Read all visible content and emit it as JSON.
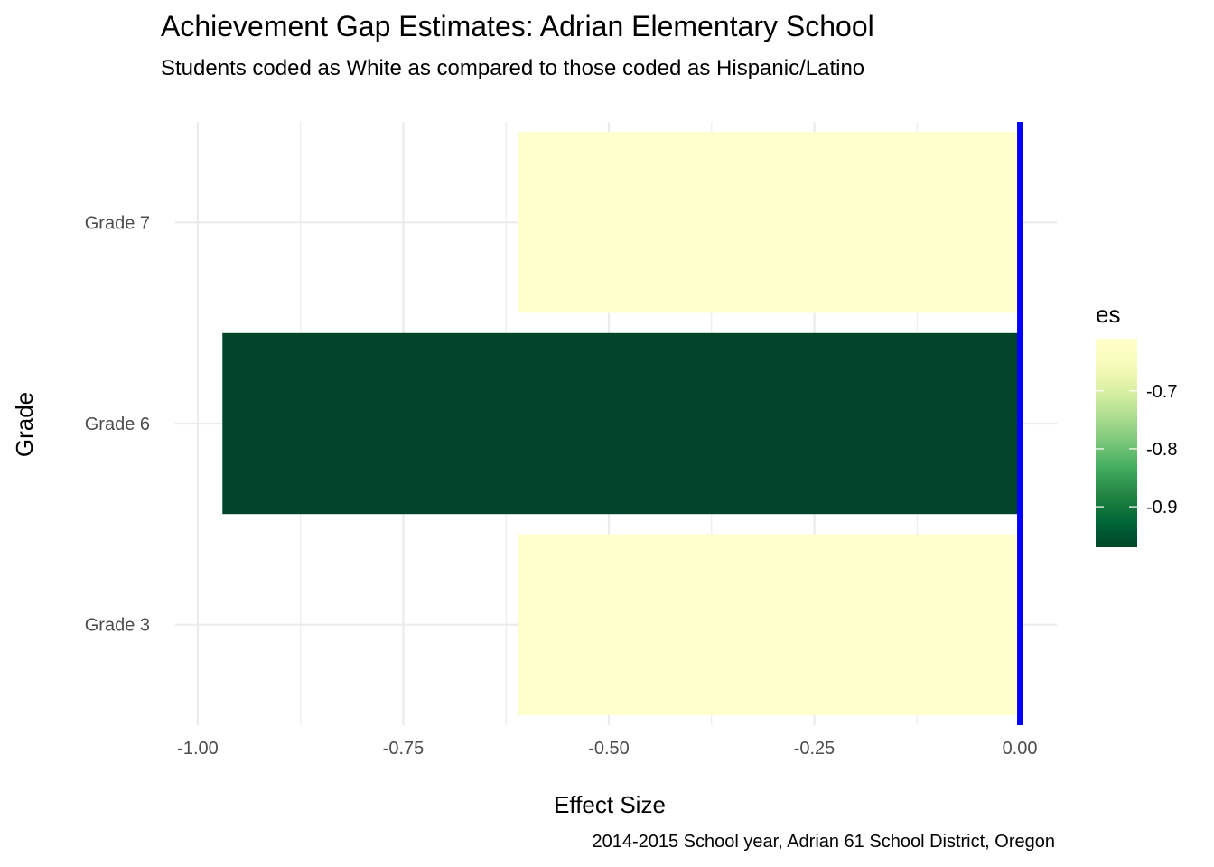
{
  "chart_data": {
    "type": "bar",
    "orientation": "horizontal",
    "title": "Achievement Gap Estimates: Adrian Elementary School",
    "subtitle": "Students coded as White as compared to those coded as Hispanic/Latino",
    "xlabel": "Effect Size",
    "ylabel": "Grade",
    "caption": "2014-2015 School year, Adrian  61 School District, Oregon",
    "categories": [
      "Grade 3",
      "Grade 6",
      "Grade 7"
    ],
    "values": [
      -0.61,
      -0.97,
      -0.61
    ],
    "xlim": [
      -1.045,
      0.045
    ],
    "xticks": [
      -1.0,
      -0.75,
      -0.5,
      -0.25,
      0.0
    ],
    "xtick_labels": [
      "-1.00",
      "-0.75",
      "-0.50",
      "-0.25",
      "0.00"
    ],
    "reference_line": {
      "x": 0.0,
      "color": "#0000ff"
    },
    "grid": true,
    "legend": {
      "title": "es",
      "placement": "right",
      "range": [
        -0.97,
        -0.61
      ],
      "ticks": [
        -0.7,
        -0.8,
        -0.9
      ],
      "tick_labels": [
        "-0.7",
        "-0.8",
        "-0.9"
      ],
      "colors": [
        "#004529",
        "#006837",
        "#238443",
        "#41ab5d",
        "#78c679",
        "#addd8e",
        "#d9f0a3",
        "#f7fcb9",
        "#ffffcc"
      ]
    }
  }
}
